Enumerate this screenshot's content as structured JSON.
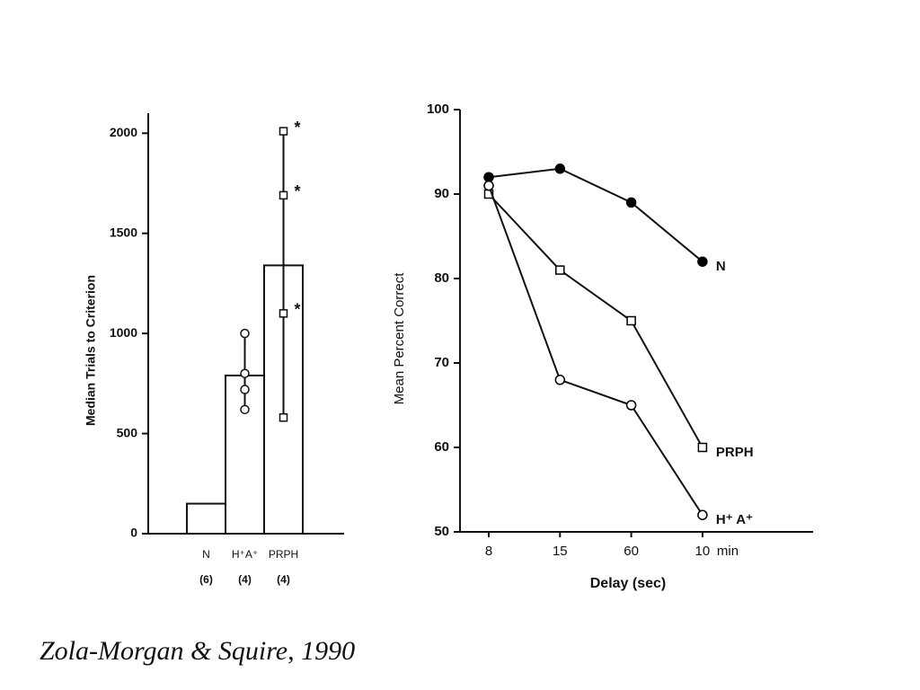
{
  "caption": "Zola-Morgan & Squire, 1990",
  "chart_data": [
    {
      "type": "bar",
      "y_label": "Median Trials to Criterion",
      "categories": [
        "N",
        "H⁺A⁺",
        "PRPH"
      ],
      "group_sizes": [
        "(6)",
        "(4)",
        "(4)"
      ],
      "values": [
        150,
        790,
        1340
      ],
      "color": "#ffffff",
      "individual_values": [
        [],
        [
          1000,
          800,
          720,
          620
        ],
        [
          2010,
          1690,
          1100,
          580
        ]
      ],
      "individual_labels": [
        [],
        [
          null,
          null,
          null,
          null
        ],
        [
          "*",
          "*",
          "*",
          null
        ]
      ],
      "ylim": [
        0,
        2100
      ],
      "yticks": [
        0,
        500,
        1000,
        1500,
        2000
      ]
    },
    {
      "type": "line",
      "x_label": "Delay (sec)",
      "y_label": "Mean Percent Correct",
      "categories": [
        "8",
        "15",
        "60",
        "10"
      ],
      "x_suffix": "min",
      "ylim": [
        50,
        100
      ],
      "yticks": [
        50,
        60,
        70,
        80,
        90,
        100
      ],
      "series": [
        {
          "name": "N",
          "color": "#000000",
          "marker": "filled-circle",
          "values": [
            92,
            93,
            89,
            82
          ]
        },
        {
          "name": "PRPH",
          "color": "#000000",
          "marker": "square",
          "values": [
            90,
            81,
            75,
            60
          ]
        },
        {
          "name": "H⁺ A⁺",
          "color": "#000000",
          "marker": "circle",
          "values": [
            91,
            68,
            65,
            52
          ]
        }
      ]
    }
  ]
}
